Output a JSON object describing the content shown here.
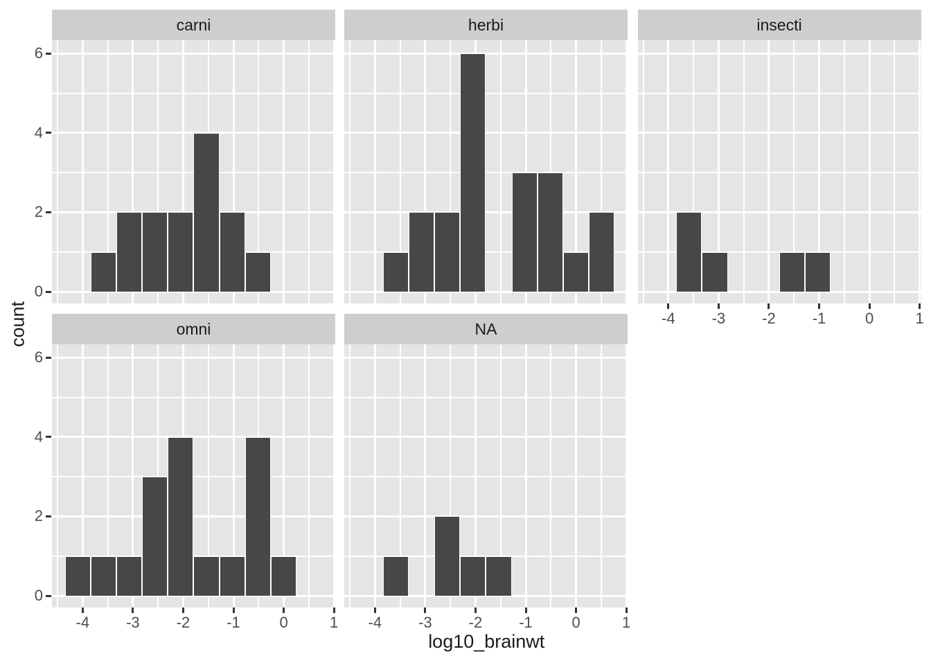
{
  "chart": {
    "xlabel": "log10_brainwt",
    "ylabel": "count"
  },
  "chart_data": {
    "type": "bar",
    "subtype": "faceted-histogram",
    "title": "",
    "xlabel": "log10_brainwt",
    "ylabel": "count",
    "facet_labels": [
      "carni",
      "herbi",
      "insecti",
      "omni",
      "NA"
    ],
    "bin_edges": [
      -4.355,
      -3.842,
      -3.33,
      -2.818,
      -2.305,
      -1.793,
      -1.281,
      -0.769,
      -0.256,
      0.256,
      0.768
    ],
    "facets": [
      {
        "label": "carni",
        "row": 0,
        "col": 0,
        "counts": [
          0,
          1,
          2,
          2,
          2,
          4,
          2,
          1,
          0,
          0
        ],
        "counts_note": "see bins"
      },
      {
        "label": "herbi",
        "row": 0,
        "col": 1,
        "counts": [
          0,
          1,
          2,
          2,
          6,
          0,
          3,
          3,
          1,
          2
        ]
      },
      {
        "label": "insecti",
        "row": 0,
        "col": 2,
        "counts": [
          0,
          2,
          1,
          0,
          0,
          1,
          1,
          0,
          0,
          0
        ]
      },
      {
        "label": "omni",
        "row": 1,
        "col": 0,
        "counts": [
          1,
          1,
          1,
          3,
          4,
          1,
          1,
          4,
          1,
          0
        ]
      },
      {
        "label": "NA",
        "row": 1,
        "col": 1,
        "counts": [
          0,
          1,
          0,
          2,
          1,
          1,
          0,
          0,
          0,
          0
        ]
      }
    ],
    "x_ticks": [
      -4,
      -3,
      -2,
      -1,
      0,
      1
    ],
    "x_tick_labels": [
      "-4",
      "-3",
      "-2",
      "-1",
      "0",
      "1"
    ],
    "y_ticks": [
      0,
      2,
      4,
      6
    ],
    "y_tick_labels": [
      "0",
      "2",
      "4",
      "6"
    ],
    "x_minor_ticks": [
      -4.5,
      -3.5,
      -2.5,
      -1.5,
      -0.5,
      0.5
    ],
    "y_minor_ticks": [
      1,
      3,
      5
    ],
    "xlim": [
      -4.61,
      1.03
    ],
    "ylim": [
      0,
      6.33
    ],
    "grid": true,
    "legend": false,
    "colors": {
      "bar_fill": "#474747",
      "bar_border": "#ffffff",
      "panel_bg": "#e5e5e5",
      "strip_bg": "#cecece",
      "gridline": "#ffffff",
      "tick_mark": "#333333",
      "tick_label": "#4d4d4d",
      "title_text": "#1a1a1a"
    }
  }
}
